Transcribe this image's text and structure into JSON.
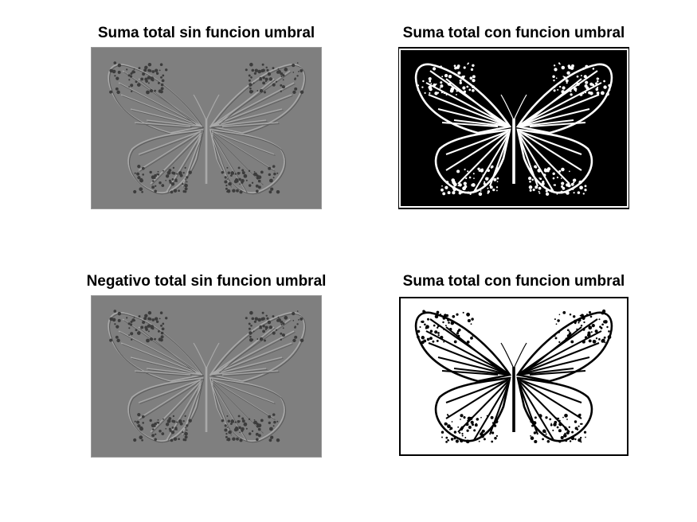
{
  "figure": {
    "panels": [
      {
        "title": "Suma total sin funcion umbral",
        "style": "gray"
      },
      {
        "title": "Suma total con funcion umbral",
        "style": "dark"
      },
      {
        "title": "Negativo total sin funcion umbral",
        "style": "gray"
      },
      {
        "title": "Suma total con funcion umbral",
        "style": "light"
      }
    ]
  }
}
